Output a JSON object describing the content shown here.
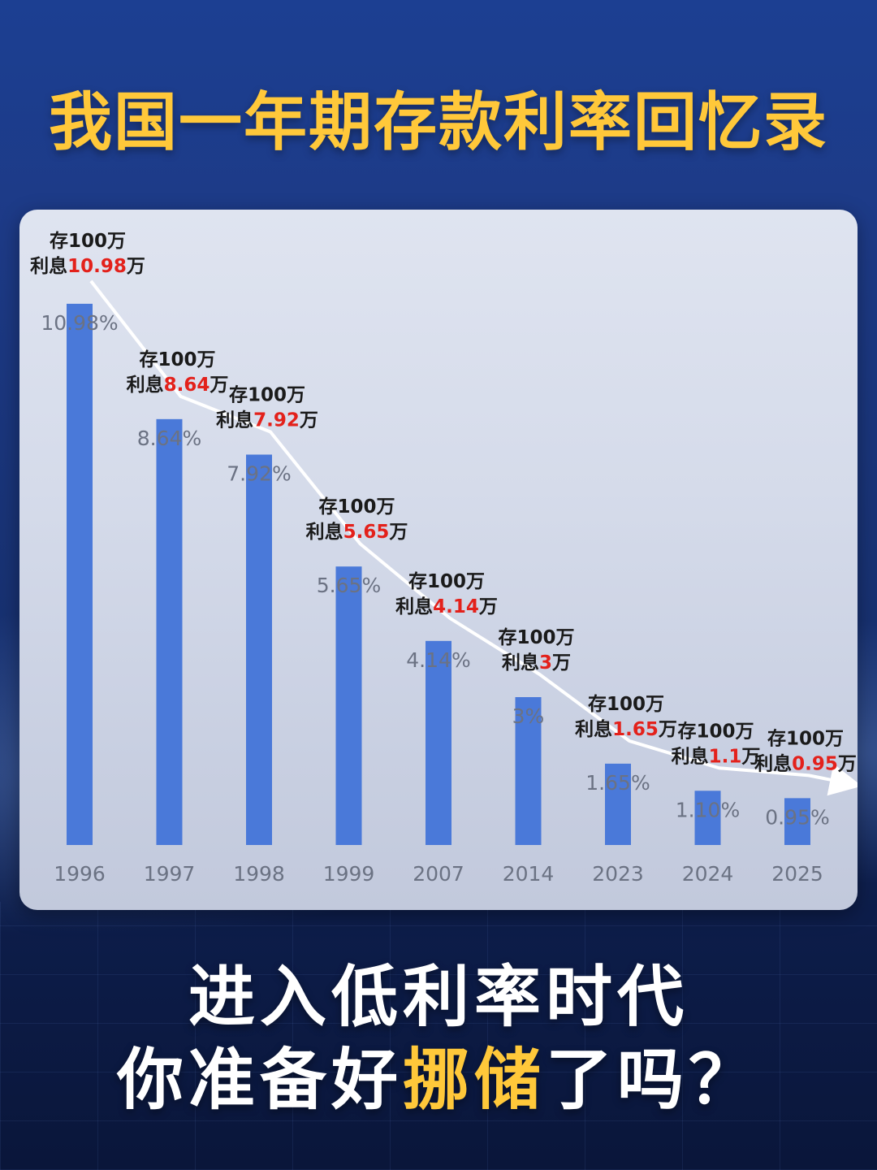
{
  "header": {
    "title": "我国一年期存款利率回忆录"
  },
  "footer": {
    "line1": "进入低利率时代",
    "line2_before": "你准备好",
    "line2_highlight": "挪储",
    "line2_after": "了吗？"
  },
  "colors": {
    "bar": "#4a79d9",
    "title": "#ffc83a",
    "interest": "#e3211b",
    "trend_line": "#ffffff"
  },
  "chart_data": {
    "type": "bar",
    "categories": [
      "1996",
      "1997",
      "1998",
      "1999",
      "2007",
      "2014",
      "2023",
      "2024",
      "2025"
    ],
    "values": [
      10.98,
      8.64,
      7.92,
      5.65,
      4.14,
      3,
      1.65,
      1.1,
      0.95
    ],
    "value_labels": [
      "10.98%",
      "8.64%",
      "7.92%",
      "5.65%",
      "4.14%",
      "3%",
      "1.65%",
      "1.10%",
      "0.95%"
    ],
    "ylim": [
      0,
      12
    ],
    "annotations": [
      {
        "line1": "存100万",
        "prefix": "利息",
        "amount": "10.98",
        "suffix": "万"
      },
      {
        "line1": "存100万",
        "prefix": "利息",
        "amount": "8.64",
        "suffix": "万"
      },
      {
        "line1": "存100万",
        "prefix": "利息",
        "amount": "7.92",
        "suffix": "万"
      },
      {
        "line1": "存100万",
        "prefix": "利息",
        "amount": "5.65",
        "suffix": "万"
      },
      {
        "line1": "存100万",
        "prefix": "利息",
        "amount": "4.14",
        "suffix": "万"
      },
      {
        "line1": "存100万",
        "prefix": "利息",
        "amount": "3",
        "suffix": "万"
      },
      {
        "line1": "存100万",
        "prefix": "利息",
        "amount": "1.65",
        "suffix": "万"
      },
      {
        "line1": "存100万",
        "prefix": "利息",
        "amount": "1.1",
        "suffix": "万"
      },
      {
        "line1": "存100万",
        "prefix": "利息",
        "amount": "0.95",
        "suffix": "万"
      }
    ],
    "grid": false,
    "trend_arrow": true
  }
}
